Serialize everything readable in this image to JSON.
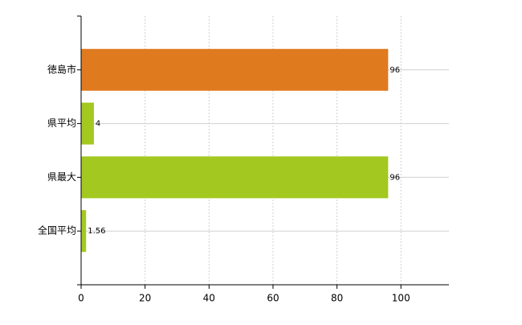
{
  "chart_data": {
    "type": "bar",
    "orientation": "horizontal",
    "categories": [
      "徳島市",
      "県平均",
      "県最大",
      "全国平均"
    ],
    "values": [
      96,
      4,
      96,
      1.56
    ],
    "colors": [
      "#e07a1f",
      "#a3c920",
      "#a3c920",
      "#a3c920"
    ],
    "xlim": [
      0,
      115
    ],
    "xticks": [
      0,
      20,
      40,
      60,
      80,
      100
    ],
    "grid": true
  }
}
